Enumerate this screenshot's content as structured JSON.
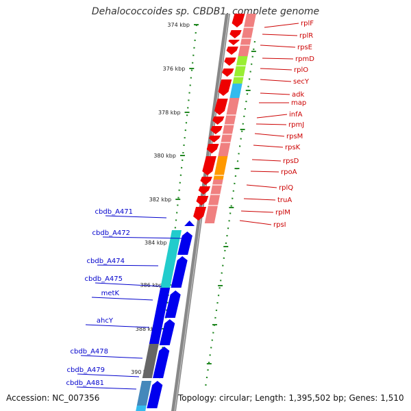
{
  "title": "Dehalococcoides sp. CBDB1, complete genome",
  "accession": "Accession: NC_007356",
  "topology": "Topology: circular; Length: 1,395,502 bp; Genes: 1,510",
  "colors": {
    "forward_gene": "#ee0000",
    "reverse_gene": "#0000ee",
    "backbone": "#888888",
    "cog_salmon": "#f08080",
    "cog_green": "#99ee33",
    "cog_cyan": "#33bbee",
    "cog_orange": "#ff9900",
    "cog_teal": "#22cccc",
    "cog_gray": "#666666",
    "tick": "#228822"
  },
  "kbp_labels": [
    "374 kbp",
    "376 kbp",
    "378 kbp",
    "380 kbp",
    "382 kbp",
    "384 kbp",
    "386 kbp",
    "388 kbp",
    "390 kbp"
  ],
  "genes_right": [
    "rplF",
    "rplR",
    "rpsE",
    "rpmD",
    "rplO",
    "secY",
    "adk",
    "map",
    "infA",
    "rpmJ",
    "rpsM",
    "rpsK",
    "rpsD",
    "rpoA",
    "rplQ",
    "truA",
    "rplM",
    "rpsI"
  ],
  "genes_left": [
    "cbdb_A471",
    "cbdb_A472",
    "cbdb_A474",
    "cbdb_A475",
    "metK",
    "ahcY",
    "cbdb_A478",
    "cbdb_A479",
    "cbdb_A481"
  ]
}
